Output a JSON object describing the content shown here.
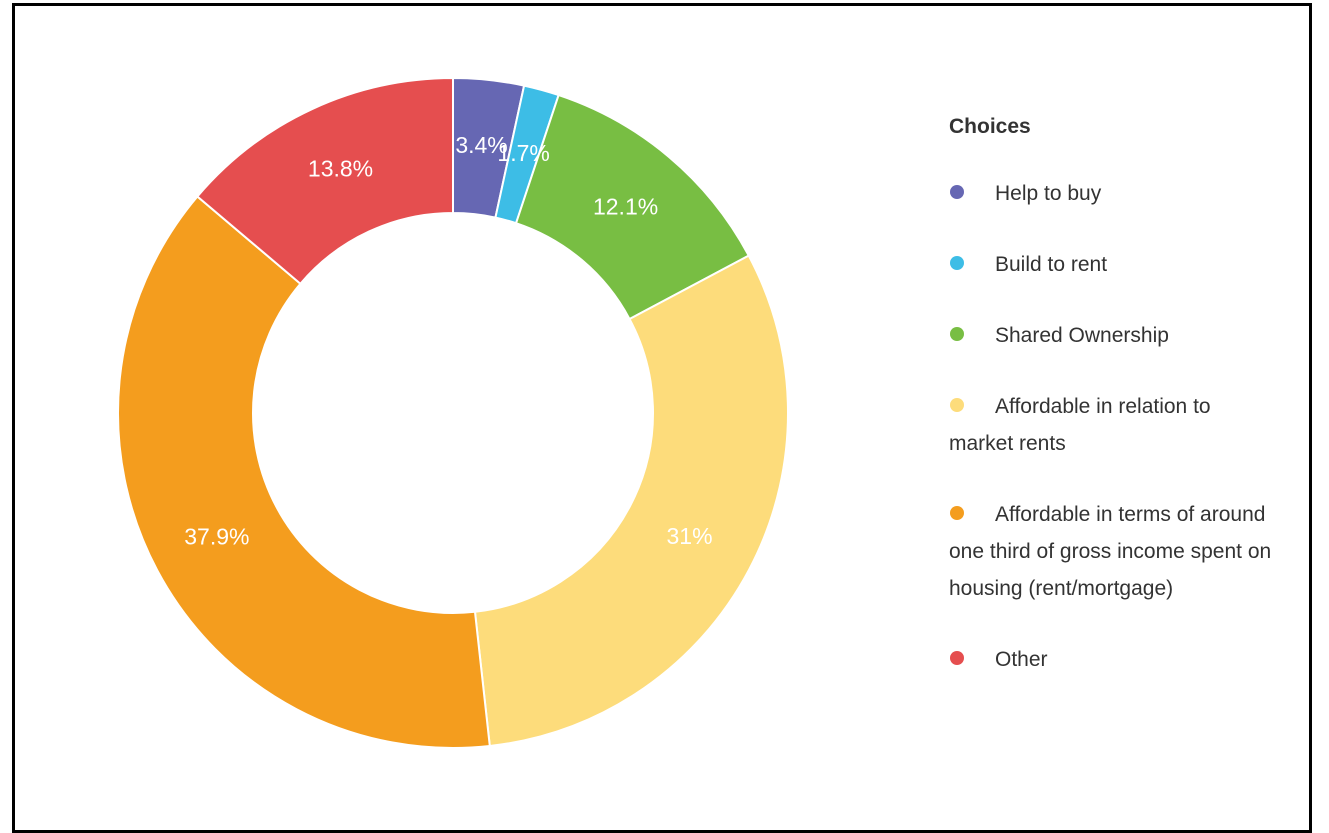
{
  "chart_data": {
    "type": "donut",
    "legend_title": "Choices",
    "categories": [
      "Help to buy",
      "Build to rent",
      "Shared Ownership",
      "Affordable in relation to market rents",
      "Affordable in terms of around one third of gross income spent on housing (rent/mortgage)",
      "Other"
    ],
    "values": [
      3.4,
      1.7,
      12.1,
      31,
      37.9,
      13.8
    ],
    "value_labels": [
      "3.4%",
      "1.7%",
      "12.1%",
      "31%",
      "37.9%",
      "13.8%"
    ],
    "colors": [
      "#6667b3",
      "#3dbde6",
      "#78be43",
      "#fddc7b",
      "#f49d1e",
      "#e54e4f"
    ],
    "legend": "right"
  }
}
